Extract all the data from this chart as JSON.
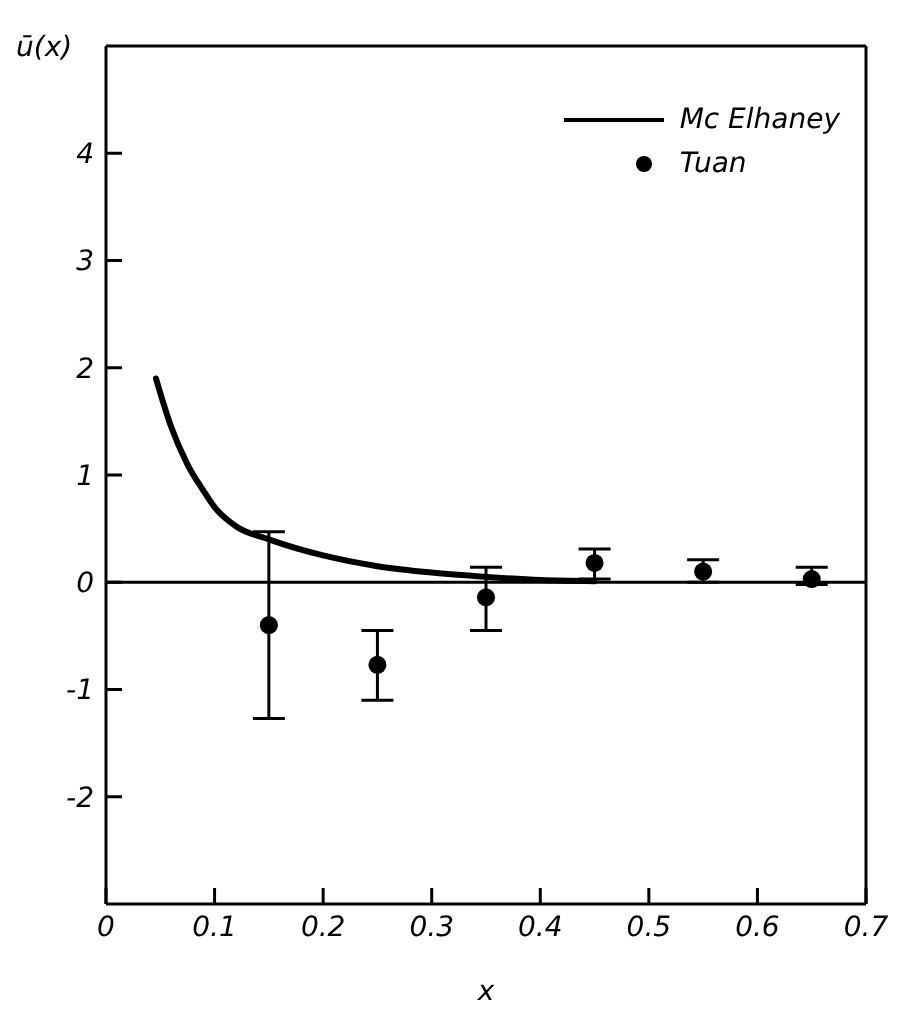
{
  "chart_data": {
    "type": "scatter",
    "xlabel": "x",
    "ylabel": "ū(x)",
    "xlim": [
      0,
      0.7
    ],
    "ylim": [
      -3,
      5
    ],
    "xticks": [
      0,
      0.1,
      0.2,
      0.3,
      0.4,
      0.5,
      0.6,
      0.7
    ],
    "yticks": [
      -2,
      -1,
      0,
      1,
      2,
      3,
      4
    ],
    "legend": "top right",
    "series": [
      {
        "name": "Mc Elhaney",
        "type": "line",
        "color": "#000000",
        "marker": "none",
        "line_style": "solid",
        "x": [
          0.046,
          0.06,
          0.075,
          0.09,
          0.1,
          0.12,
          0.15,
          0.2,
          0.25,
          0.3,
          0.35,
          0.4,
          0.45
        ],
        "values": [
          1.9,
          1.45,
          1.1,
          0.85,
          0.7,
          0.52,
          0.4,
          0.25,
          0.15,
          0.09,
          0.05,
          0.02,
          0.01
        ]
      },
      {
        "name": "Tuan",
        "color": "#000000",
        "marker": "circle",
        "x": [
          0.15,
          0.25,
          0.35,
          0.45,
          0.55,
          0.65
        ],
        "values": [
          -0.4,
          -0.77,
          -0.14,
          0.18,
          0.1,
          0.03
        ],
        "errors": [
          [
            -1.27,
            0.47
          ],
          [
            -1.1,
            -0.45
          ],
          [
            -0.45,
            0.14
          ],
          [
            0.03,
            0.31
          ],
          [
            0,
            0.21
          ],
          [
            -0.02,
            0.14
          ]
        ]
      }
    ],
    "ref_lines": [
      {
        "axis": "y",
        "value": 0,
        "color": "#000000"
      }
    ]
  }
}
